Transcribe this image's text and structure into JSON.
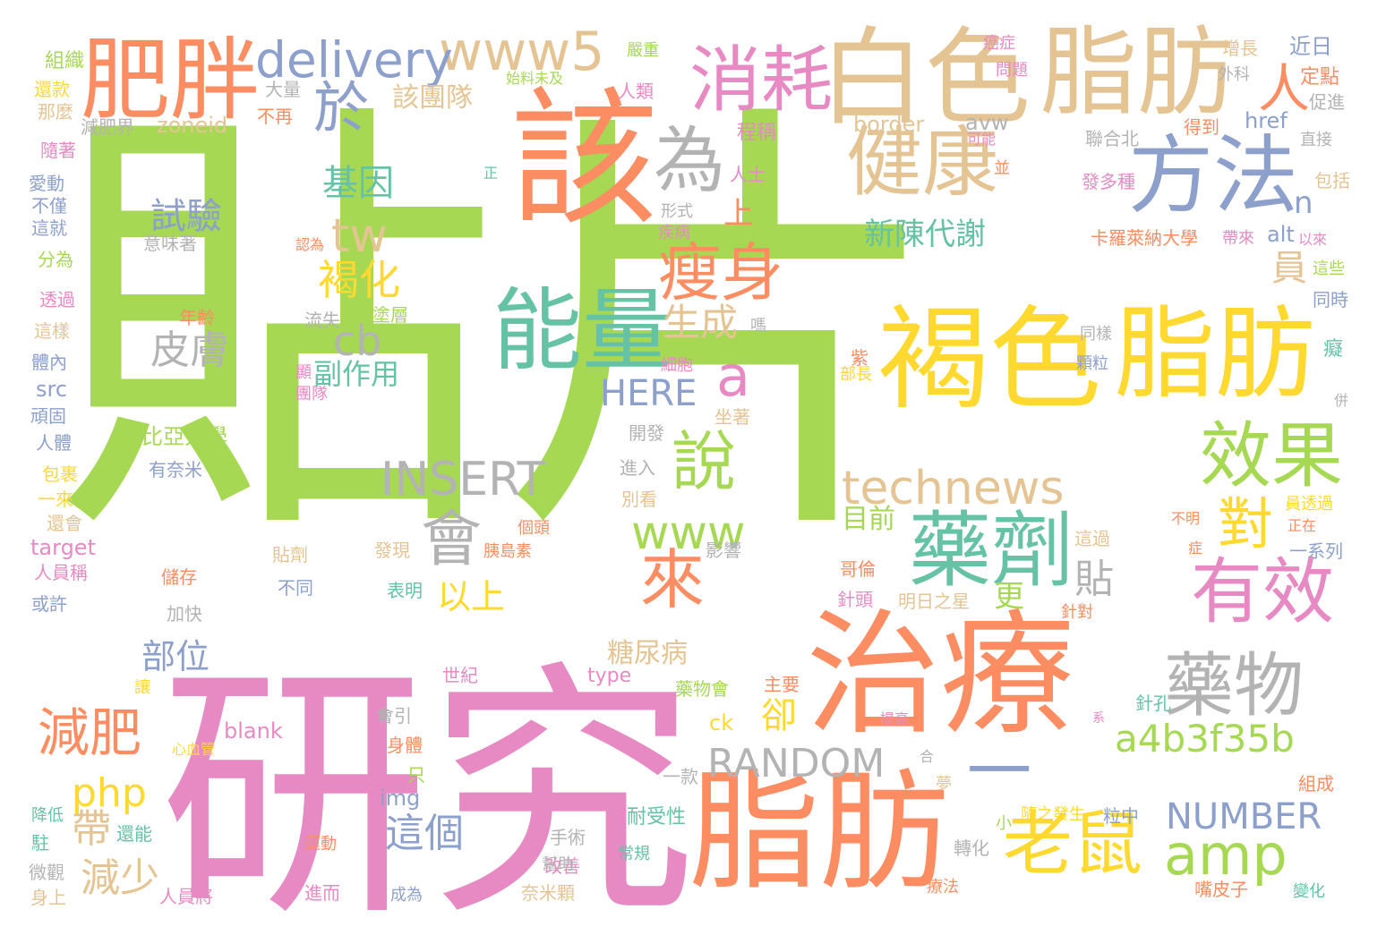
{
  "palette": {
    "green": "#a6d854",
    "pink": "#e78ac3",
    "orange": "#fc8d62",
    "teal": "#66c2a5",
    "blue": "#8da0cb",
    "yellow": "#ffd92f",
    "tan": "#e5c494",
    "gray": "#b3b3b3"
  },
  "words": [
    {
      "text": "貼片",
      "color": "green"
    },
    {
      "text": "研究",
      "color": "pink"
    },
    {
      "text": "該",
      "color": "orange"
    },
    {
      "text": "白色",
      "color": "tan"
    },
    {
      "text": "脂肪",
      "color": "tan"
    },
    {
      "text": "治療",
      "color": "orange"
    },
    {
      "text": "脂肪",
      "color": "orange"
    },
    {
      "text": "褐色",
      "color": "yellow"
    },
    {
      "text": "脂肪",
      "color": "yellow"
    },
    {
      "text": "一",
      "color": "blue"
    },
    {
      "text": "肥胖",
      "color": "orange"
    },
    {
      "text": "方法",
      "color": "blue"
    },
    {
      "text": "能量",
      "color": "teal"
    },
    {
      "text": "藥劑",
      "color": "teal"
    },
    {
      "text": "消耗",
      "color": "pink"
    },
    {
      "text": "健康",
      "color": "tan"
    },
    {
      "text": "老鼠",
      "color": "yellow"
    },
    {
      "text": "藥物",
      "color": "gray"
    },
    {
      "text": "有效",
      "color": "pink"
    },
    {
      "text": "效果",
      "color": "green"
    },
    {
      "text": "瘦身",
      "color": "orange"
    },
    {
      "text": "www5",
      "color": "tan"
    },
    {
      "text": "delivery",
      "color": "blue"
    },
    {
      "text": "於",
      "color": "blue"
    },
    {
      "text": "為",
      "color": "gray"
    },
    {
      "text": "人",
      "color": "orange"
    },
    {
      "text": "說",
      "color": "green"
    },
    {
      "text": "來",
      "color": "orange"
    },
    {
      "text": "會",
      "color": "gray"
    },
    {
      "text": "amp",
      "color": "green"
    },
    {
      "text": "減肥",
      "color": "orange"
    },
    {
      "text": "對",
      "color": "yellow"
    },
    {
      "text": "a4b3f35b",
      "color": "green"
    },
    {
      "text": "technews",
      "color": "tan"
    },
    {
      "text": "www",
      "color": "green"
    },
    {
      "text": "INSERT",
      "color": "gray"
    },
    {
      "text": "RANDOM",
      "color": "gray"
    },
    {
      "text": "NUMBER",
      "color": "blue"
    },
    {
      "text": "HERE",
      "color": "blue"
    },
    {
      "text": "tw",
      "color": "tan"
    },
    {
      "text": "cb",
      "color": "gray"
    },
    {
      "text": "a",
      "color": "pink"
    },
    {
      "text": "n",
      "color": "blue"
    },
    {
      "text": "基因",
      "color": "teal"
    },
    {
      "text": "褐化",
      "color": "yellow"
    },
    {
      "text": "生成",
      "color": "tan"
    },
    {
      "text": "皮膚",
      "color": "gray"
    },
    {
      "text": "試驗",
      "color": "blue"
    },
    {
      "text": "部位",
      "color": "blue"
    },
    {
      "text": "以上",
      "color": "yellow"
    },
    {
      "text": "這個",
      "color": "blue"
    },
    {
      "text": "減少",
      "color": "tan"
    },
    {
      "text": "帶",
      "color": "tan"
    },
    {
      "text": "php",
      "color": "yellow"
    },
    {
      "text": "卻",
      "color": "yellow"
    },
    {
      "text": "貼",
      "color": "gray"
    },
    {
      "text": "員",
      "color": "tan"
    },
    {
      "text": "上",
      "color": "orange"
    },
    {
      "text": "更",
      "color": "green"
    },
    {
      "text": "新陳代謝",
      "color": "teal"
    },
    {
      "text": "副作用",
      "color": "teal"
    },
    {
      "text": "糖尿病",
      "color": "tan"
    },
    {
      "text": "目前",
      "color": "green"
    },
    {
      "text": "該團隊",
      "color": "tan"
    },
    {
      "text": "比亞大學",
      "color": "green"
    },
    {
      "text": "zoneid",
      "color": "tan"
    },
    {
      "text": "border",
      "color": "tan"
    },
    {
      "text": "avw",
      "color": "gray"
    },
    {
      "text": "href",
      "color": "blue"
    },
    {
      "text": "alt",
      "color": "blue"
    },
    {
      "text": "src",
      "color": "blue"
    },
    {
      "text": "target",
      "color": "pink"
    },
    {
      "text": "blank",
      "color": "pink"
    },
    {
      "text": "img",
      "color": "blue"
    },
    {
      "text": "ck",
      "color": "yellow"
    },
    {
      "text": "type",
      "color": "pink"
    },
    {
      "text": "組織",
      "color": "green"
    },
    {
      "text": "還款",
      "color": "yellow"
    },
    {
      "text": "那麼",
      "color": "tan"
    },
    {
      "text": "減肥界",
      "color": "gray"
    },
    {
      "text": "不再",
      "color": "orange"
    },
    {
      "text": "大量",
      "color": "gray"
    },
    {
      "text": "隨著",
      "color": "pink"
    },
    {
      "text": "愛動",
      "color": "blue"
    },
    {
      "text": "不僅",
      "color": "blue"
    },
    {
      "text": "這就",
      "color": "blue"
    },
    {
      "text": "分為",
      "color": "green"
    },
    {
      "text": "透過",
      "color": "pink"
    },
    {
      "text": "這樣",
      "color": "tan"
    },
    {
      "text": "體內",
      "color": "blue"
    },
    {
      "text": "頑固",
      "color": "blue"
    },
    {
      "text": "人體",
      "color": "blue"
    },
    {
      "text": "包裹",
      "color": "yellow"
    },
    {
      "text": "一來",
      "color": "yellow"
    },
    {
      "text": "還會",
      "color": "tan"
    },
    {
      "text": "人員稱",
      "color": "pink"
    },
    {
      "text": "或許",
      "color": "blue"
    },
    {
      "text": "降低",
      "color": "teal"
    },
    {
      "text": "駐",
      "color": "teal"
    },
    {
      "text": "微觀",
      "color": "gray"
    },
    {
      "text": "身上",
      "color": "tan"
    },
    {
      "text": "意味著",
      "color": "gray"
    },
    {
      "text": "年齡",
      "color": "orange"
    },
    {
      "text": "流失",
      "color": "gray"
    },
    {
      "text": "塗層",
      "color": "green"
    },
    {
      "text": "有奈米",
      "color": "blue"
    },
    {
      "text": "儲存",
      "color": "orange"
    },
    {
      "text": "加快",
      "color": "gray"
    },
    {
      "text": "不同",
      "color": "blue"
    },
    {
      "text": "貼劑",
      "color": "tan"
    },
    {
      "text": "發現",
      "color": "tan"
    },
    {
      "text": "表明",
      "color": "teal"
    },
    {
      "text": "個頭",
      "color": "orange"
    },
    {
      "text": "胰島素",
      "color": "orange"
    },
    {
      "text": "還能",
      "color": "teal"
    },
    {
      "text": "心血管",
      "color": "yellow"
    },
    {
      "text": "人員將",
      "color": "pink"
    },
    {
      "text": "進而",
      "color": "pink"
    },
    {
      "text": "成為",
      "color": "blue"
    },
    {
      "text": "奈米顆",
      "color": "tan"
    },
    {
      "text": "改善",
      "color": "pink"
    },
    {
      "text": "手術",
      "color": "gray"
    },
    {
      "text": "耐受性",
      "color": "teal"
    },
    {
      "text": "常規",
      "color": "teal"
    },
    {
      "text": "幫助",
      "color": "gray"
    },
    {
      "text": "運動",
      "color": "orange"
    },
    {
      "text": "只",
      "color": "green"
    },
    {
      "text": "身體",
      "color": "orange"
    },
    {
      "text": "會引",
      "color": "gray"
    },
    {
      "text": "讓",
      "color": "yellow"
    },
    {
      "text": "世紀",
      "color": "pink"
    },
    {
      "text": "一款",
      "color": "gray"
    },
    {
      "text": "藥物會",
      "color": "green"
    },
    {
      "text": "主要",
      "color": "orange"
    },
    {
      "text": "坐著",
      "color": "tan"
    },
    {
      "text": "開發",
      "color": "gray"
    },
    {
      "text": "進入",
      "color": "gray"
    },
    {
      "text": "別看",
      "color": "tan"
    },
    {
      "text": "影響",
      "color": "gray"
    },
    {
      "text": "始料未及",
      "color": "green"
    },
    {
      "text": "人類",
      "color": "pink"
    },
    {
      "text": "嚴重",
      "color": "green"
    },
    {
      "text": "形式",
      "color": "gray"
    },
    {
      "text": "疾病",
      "color": "pink"
    },
    {
      "text": "人士",
      "color": "pink"
    },
    {
      "text": "程稱",
      "color": "pink"
    },
    {
      "text": "可能",
      "color": "pink"
    },
    {
      "text": "並",
      "color": "orange"
    },
    {
      "text": "細胞",
      "color": "pink"
    },
    {
      "text": "嗎",
      "color": "gray"
    },
    {
      "text": "部長",
      "color": "yellow"
    },
    {
      "text": "紫",
      "color": "orange"
    },
    {
      "text": "團隊",
      "color": "pink"
    },
    {
      "text": "顯",
      "color": "pink"
    },
    {
      "text": "認為",
      "color": "orange"
    },
    {
      "text": "正",
      "color": "teal"
    },
    {
      "text": "問題",
      "color": "pink"
    },
    {
      "text": "癌症",
      "color": "pink"
    },
    {
      "text": "增長",
      "color": "tan"
    },
    {
      "text": "近日",
      "color": "blue"
    },
    {
      "text": "外科",
      "color": "gray"
    },
    {
      "text": "定點",
      "color": "orange"
    },
    {
      "text": "促進",
      "color": "gray"
    },
    {
      "text": "聯合北",
      "color": "gray"
    },
    {
      "text": "得到",
      "color": "orange"
    },
    {
      "text": "直接",
      "color": "gray"
    },
    {
      "text": "包括",
      "color": "tan"
    },
    {
      "text": "發多種",
      "color": "pink"
    },
    {
      "text": "卡羅萊納大學",
      "color": "orange"
    },
    {
      "text": "帶來",
      "color": "pink"
    },
    {
      "text": "以來",
      "color": "pink"
    },
    {
      "text": "這些",
      "color": "green"
    },
    {
      "text": "同時",
      "color": "blue"
    },
    {
      "text": "同樣",
      "color": "gray"
    },
    {
      "text": "顆粒",
      "color": "blue"
    },
    {
      "text": "癡",
      "color": "teal"
    },
    {
      "text": "併",
      "color": "gray"
    },
    {
      "text": "員透過",
      "color": "yellow"
    },
    {
      "text": "正在",
      "color": "orange"
    },
    {
      "text": "不明",
      "color": "orange"
    },
    {
      "text": "這過",
      "color": "tan"
    },
    {
      "text": "症",
      "color": "orange"
    },
    {
      "text": "一系列",
      "color": "blue"
    },
    {
      "text": "哥倫",
      "color": "orange"
    },
    {
      "text": "針頭",
      "color": "pink"
    },
    {
      "text": "明日之星",
      "color": "tan"
    },
    {
      "text": "針對",
      "color": "orange"
    },
    {
      "text": "針孔",
      "color": "teal"
    },
    {
      "text": "提高",
      "color": "pink"
    },
    {
      "text": "系",
      "color": "pink"
    },
    {
      "text": "合",
      "color": "gray"
    },
    {
      "text": "夢",
      "color": "tan"
    },
    {
      "text": "小",
      "color": "green"
    },
    {
      "text": "隨之發生",
      "color": "yellow"
    },
    {
      "text": "粒中",
      "color": "blue"
    },
    {
      "text": "組成",
      "color": "orange"
    },
    {
      "text": "轉化",
      "color": "gray"
    },
    {
      "text": "療法",
      "color": "orange"
    },
    {
      "text": "嘴皮子",
      "color": "orange"
    },
    {
      "text": "變化",
      "color": "teal"
    }
  ]
}
